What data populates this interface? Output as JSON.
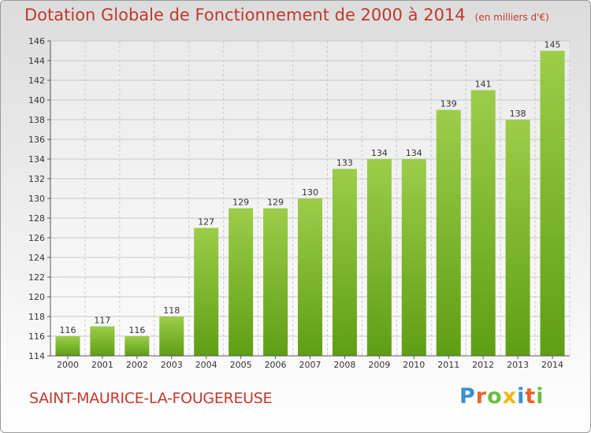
{
  "header": {
    "title": "Dotation Globale de Fonctionnement de 2000 à 2014",
    "subtitle": "(en milliers d'€)"
  },
  "footer": {
    "commune": "SAINT-MAURICE-LA-FOUGEREUSE",
    "logo_letters": [
      "P",
      "r",
      "o",
      "x",
      "i",
      "t",
      "i"
    ]
  },
  "colors": {
    "bar_top": "#9ccd4a",
    "bar_bottom": "#5f9e14",
    "title": "#c0392b"
  },
  "chart_data": {
    "type": "bar",
    "categories": [
      "2000",
      "2001",
      "2002",
      "2003",
      "2004",
      "2005",
      "2006",
      "2007",
      "2008",
      "2009",
      "2010",
      "2011",
      "2012",
      "2013",
      "2014"
    ],
    "values": [
      116,
      117,
      116,
      118,
      127,
      129,
      129,
      130,
      133,
      134,
      134,
      139,
      141,
      138,
      145
    ],
    "title": "Dotation Globale de Fonctionnement de 2000 à 2014",
    "subtitle": "(en milliers d'€)",
    "ylim": [
      114,
      146
    ],
    "yticks": [
      114,
      116,
      118,
      120,
      122,
      124,
      126,
      128,
      130,
      132,
      134,
      136,
      138,
      140,
      142,
      144,
      146
    ],
    "grid": true,
    "data_labels": true
  }
}
